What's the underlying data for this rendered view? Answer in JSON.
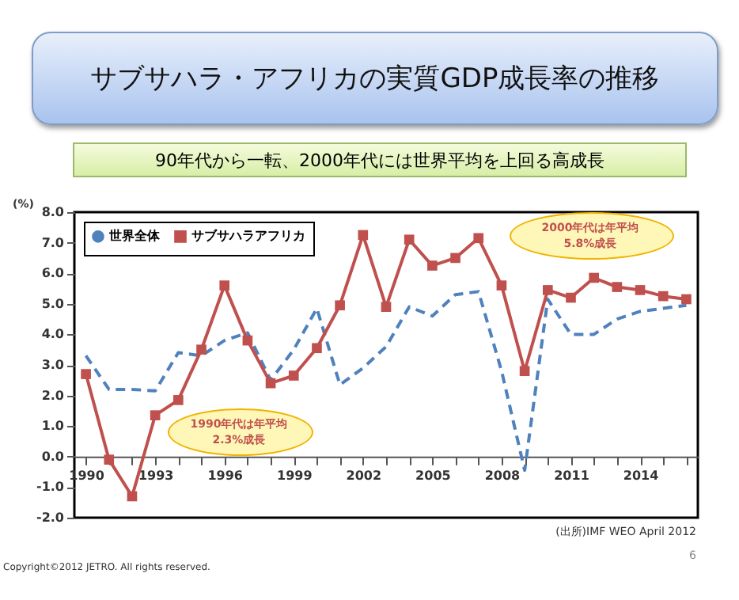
{
  "chart_data": {
    "type": "line",
    "title": "サブサハラ・アフリカの実質GDP成長率の推移",
    "subtitle": "90年代から一転、2000年代には世界平均を上回る高成長",
    "ylabel": "(%)",
    "categories": [
      "1990",
      null,
      null,
      "1993",
      null,
      null,
      "1996",
      null,
      null,
      "1999",
      null,
      null,
      "2002",
      null,
      null,
      "2005",
      null,
      null,
      "2008",
      null,
      null,
      "2011",
      null,
      null,
      "2014",
      null,
      null
    ],
    "series": [
      {
        "name": "世界全体",
        "color": "#4f81bd",
        "line_style": "dashed",
        "marker": "none",
        "values": [
          3.3,
          2.2,
          2.2,
          2.15,
          3.4,
          3.3,
          3.8,
          4.05,
          2.5,
          3.5,
          4.85,
          2.35,
          2.9,
          3.6,
          4.9,
          4.6,
          5.3,
          5.4,
          2.8,
          -0.45,
          5.15,
          4.0,
          4.0,
          4.5,
          4.75,
          4.85,
          4.95
        ]
      },
      {
        "name": "サブサハラアフリカ",
        "color": "#c0504d",
        "line_style": "solid",
        "marker": "square",
        "values": [
          2.7,
          -0.1,
          -1.3,
          1.35,
          1.85,
          3.5,
          5.6,
          3.8,
          2.4,
          2.65,
          3.55,
          4.95,
          7.25,
          4.9,
          7.1,
          6.25,
          6.5,
          7.15,
          5.6,
          2.8,
          5.45,
          5.2,
          5.85,
          5.55,
          5.45,
          5.25,
          5.15
        ]
      }
    ],
    "ylim": [
      -2,
      8
    ],
    "yticks": [
      {
        "value": -2,
        "label": "-2.0"
      },
      {
        "value": -1,
        "label": "-1.0"
      },
      {
        "value": 0,
        "label": "0.0"
      },
      {
        "value": 1,
        "label": "1.0"
      },
      {
        "value": 2,
        "label": "2.0"
      },
      {
        "value": 3,
        "label": "3.0"
      },
      {
        "value": 4,
        "label": "4.0"
      },
      {
        "value": 5,
        "label": "5.0"
      },
      {
        "value": 6,
        "label": "6.0"
      },
      {
        "value": 7,
        "label": "7.0"
      },
      {
        "value": 8,
        "label": "8.0"
      }
    ],
    "grid": false,
    "legend": "top left",
    "annotations": [
      "1990年代は年平均\n2.3%成長",
      "2000年代は年平均\n5.8%成長",
      "(出所)IMF WEO April 2012",
      "6",
      "Copyright©2012 JETRO. All rights reserved."
    ]
  }
}
